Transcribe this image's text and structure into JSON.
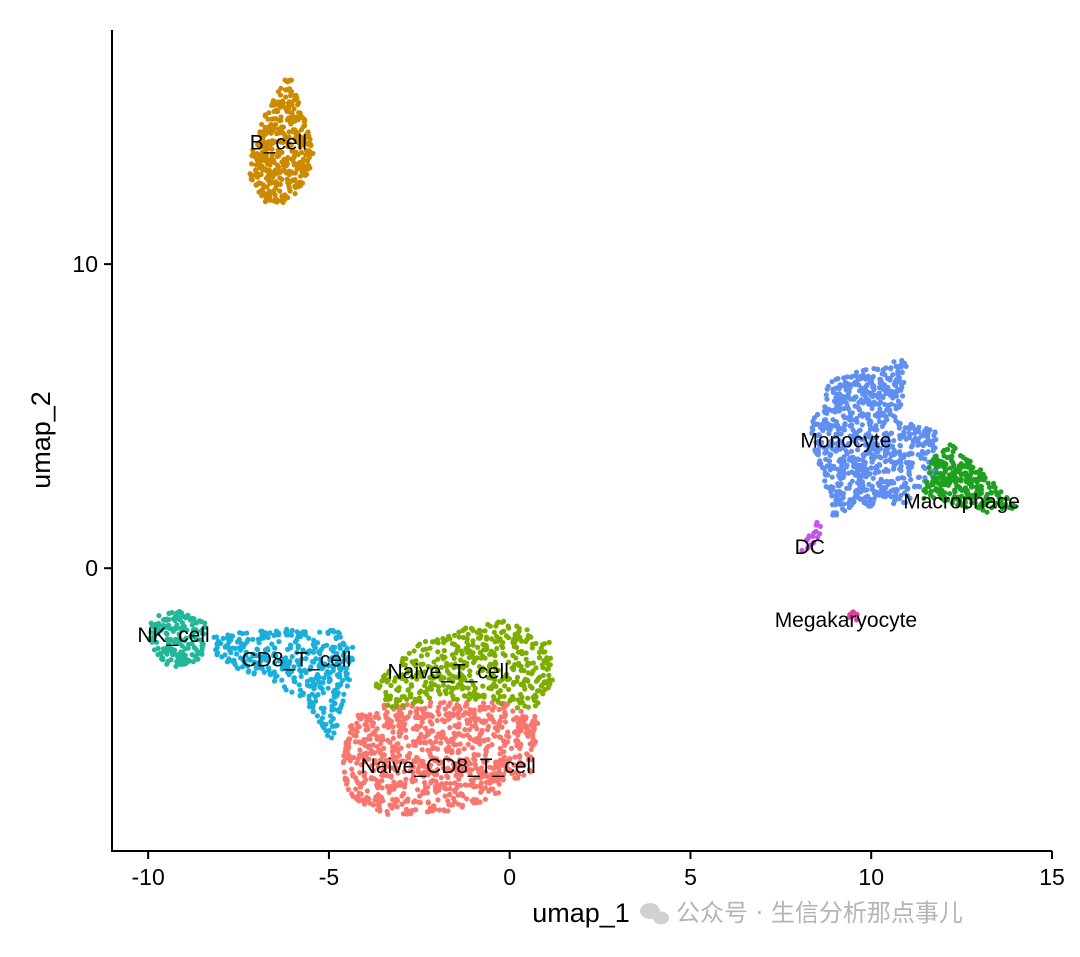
{
  "chart_data": {
    "type": "scatter",
    "title": "",
    "xlabel": "umap_1",
    "ylabel": "umap_2",
    "xlim": [
      -11,
      15
    ],
    "ylim": [
      -9.3,
      17.7
    ],
    "x_ticks": [
      -10,
      -5,
      0,
      5,
      10,
      15
    ],
    "x_tick_labels": [
      "-10",
      "-5",
      "0",
      "5",
      "10",
      "15"
    ],
    "y_ticks": [
      0,
      10
    ],
    "y_tick_labels": [
      "0",
      "10"
    ],
    "grid": false,
    "legend": "none",
    "series": [
      {
        "name": "Naive_CD8_T_cell",
        "color": "#F8766D",
        "n_points": 900,
        "shape": [
          [
            -4.6,
            -5.4
          ],
          [
            -4.1,
            -4.6
          ],
          [
            -3.1,
            -4.4
          ],
          [
            -1.5,
            -4.4
          ],
          [
            0,
            -4.4
          ],
          [
            0.8,
            -4.9
          ],
          [
            0.6,
            -6.7
          ],
          [
            -0.5,
            -7.6
          ],
          [
            -2,
            -8.1
          ],
          [
            -3.5,
            -8.1
          ],
          [
            -4.6,
            -7.4
          ]
        ],
        "label_pos": [
          -1.7,
          -6.5
        ]
      },
      {
        "name": "Naive_T_cell",
        "color": "#7CAE00",
        "n_points": 450,
        "shape": [
          [
            -3.8,
            -3.9
          ],
          [
            -2.6,
            -2.5
          ],
          [
            -1.4,
            -2.0
          ],
          [
            0,
            -1.7
          ],
          [
            1.1,
            -2.4
          ],
          [
            1.2,
            -3.9
          ],
          [
            0.6,
            -4.7
          ],
          [
            -0.5,
            -4.4
          ],
          [
            -2,
            -4.3
          ],
          [
            -3.3,
            -4.7
          ]
        ],
        "label_pos": [
          -1.7,
          -3.4
        ]
      },
      {
        "name": "CD8_T_cell",
        "color": "#1AAFDB",
        "n_points": 380,
        "shape": [
          [
            -8.2,
            -2.2
          ],
          [
            -6.5,
            -2.0
          ],
          [
            -5,
            -1.9
          ],
          [
            -4.2,
            -2.5
          ],
          [
            -4.4,
            -3.6
          ],
          [
            -4.7,
            -4.8
          ],
          [
            -4.9,
            -5.9
          ],
          [
            -5.6,
            -4.5
          ],
          [
            -6.6,
            -3.7
          ],
          [
            -7.6,
            -3.3
          ],
          [
            -8.3,
            -2.8
          ]
        ],
        "label_pos": [
          -5.9,
          -3.0
        ]
      },
      {
        "name": "NK_cell",
        "color": "#20B898",
        "n_points": 180,
        "shape": [
          [
            -9.9,
            -1.6
          ],
          [
            -9.1,
            -1.4
          ],
          [
            -8.4,
            -1.8
          ],
          [
            -8.5,
            -3.0
          ],
          [
            -9.4,
            -3.3
          ],
          [
            -10,
            -2.5
          ]
        ],
        "label_pos": [
          -9.3,
          -2.2
        ]
      },
      {
        "name": "B_cell",
        "color": "#CC8A00",
        "n_points": 380,
        "shape": [
          [
            -6.1,
            16.3
          ],
          [
            -5.6,
            14.5
          ],
          [
            -5.4,
            13.5
          ],
          [
            -5.7,
            12.6
          ],
          [
            -6.2,
            12.0
          ],
          [
            -6.8,
            12.0
          ],
          [
            -7.2,
            12.9
          ],
          [
            -7.1,
            14.0
          ],
          [
            -6.7,
            15.1
          ]
        ],
        "label_pos": [
          -6.4,
          14.0
        ]
      },
      {
        "name": "Monocyte",
        "color": "#5F8FF0",
        "n_points": 800,
        "shape": [
          [
            8.9,
            6.2
          ],
          [
            9.9,
            6.6
          ],
          [
            11.0,
            6.9
          ],
          [
            10.9,
            5.5
          ],
          [
            10.6,
            5.0
          ],
          [
            11.8,
            4.5
          ],
          [
            11.8,
            3.1
          ],
          [
            10.9,
            2.1
          ],
          [
            9.6,
            2.0
          ],
          [
            9.1,
            1.8
          ],
          [
            8.9,
            1.6
          ],
          [
            8.8,
            2.5
          ],
          [
            8.5,
            3.5
          ],
          [
            8.3,
            4.7
          ]
        ],
        "label_pos": [
          9.3,
          4.2
        ]
      },
      {
        "name": "Macrophage",
        "color": "#1FA01F",
        "n_points": 260,
        "shape": [
          [
            11.6,
            3.5
          ],
          [
            12.2,
            4.1
          ],
          [
            12.9,
            3.4
          ],
          [
            13.7,
            2.4
          ],
          [
            14.1,
            2.0
          ],
          [
            13.3,
            1.8
          ],
          [
            12.3,
            2.1
          ],
          [
            11.4,
            2.3
          ]
        ],
        "label_pos": [
          12.5,
          2.2
        ]
      },
      {
        "name": "DC",
        "color": "#C455E8",
        "n_points": 18,
        "shape": [
          [
            8.5,
            1.7
          ],
          [
            8.7,
            1.3
          ],
          [
            8.3,
            0.6
          ],
          [
            8.0,
            0.4
          ],
          [
            8.2,
            0.9
          ]
        ],
        "label_pos": [
          8.3,
          0.7
        ]
      },
      {
        "name": "Megakaryocyte",
        "color": "#E0409E",
        "n_points": 10,
        "shape": [
          [
            9.45,
            -1.4
          ],
          [
            9.7,
            -1.55
          ],
          [
            9.6,
            -1.75
          ],
          [
            9.35,
            -1.6
          ]
        ],
        "label_pos": [
          9.3,
          -1.7
        ]
      }
    ]
  },
  "watermark": "公众号 · 生信分析那点事儿"
}
